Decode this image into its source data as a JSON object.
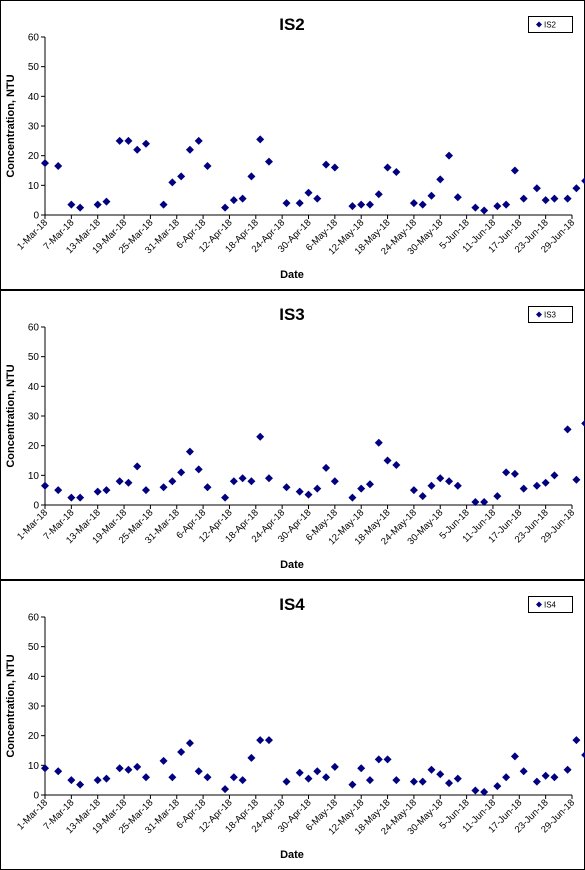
{
  "x_ticks": [
    "1-Mar-18",
    "7-Mar-18",
    "13-Mar-18",
    "19-Mar-18",
    "25-Mar-18",
    "31-Mar-18",
    "6-Apr-18",
    "12-Apr-18",
    "18-Apr-18",
    "24-Apr-18",
    "30-Apr-18",
    "6-May-18",
    "12-May-18",
    "18-May-18",
    "24-May-18",
    "30-May-18",
    "5-Jun-18",
    "11-Jun-18",
    "17-Jun-18",
    "23-Jun-18",
    "29-Jun-18"
  ],
  "chart_data": [
    {
      "type": "scatter",
      "title": "IS2",
      "xlabel": "Date",
      "ylabel": "Concentration, NTU",
      "ylim": [
        0,
        60
      ],
      "yticks": [
        0,
        10,
        20,
        30,
        40,
        50,
        60
      ],
      "xlim": [
        "2018-03-01",
        "2018-06-29"
      ],
      "legend_position": "top-right",
      "series": [
        {
          "name": "IS2",
          "color": "#000080",
          "points": [
            [
              "2018-03-01",
              17.5
            ],
            [
              "2018-03-04",
              16.5
            ],
            [
              "2018-03-07",
              3.5
            ],
            [
              "2018-03-09",
              2.5
            ],
            [
              "2018-03-13",
              3.5
            ],
            [
              "2018-03-15",
              4.5
            ],
            [
              "2018-03-18",
              25
            ],
            [
              "2018-03-20",
              25
            ],
            [
              "2018-03-22",
              22
            ],
            [
              "2018-03-24",
              24
            ],
            [
              "2018-03-28",
              3.5
            ],
            [
              "2018-03-30",
              11
            ],
            [
              "2018-04-01",
              13
            ],
            [
              "2018-04-03",
              22
            ],
            [
              "2018-04-05",
              25
            ],
            [
              "2018-04-07",
              16.5
            ],
            [
              "2018-04-11",
              2.5
            ],
            [
              "2018-04-13",
              5
            ],
            [
              "2018-04-15",
              5.5
            ],
            [
              "2018-04-17",
              13
            ],
            [
              "2018-04-19",
              25.5
            ],
            [
              "2018-04-21",
              18
            ],
            [
              "2018-04-25",
              4
            ],
            [
              "2018-04-28",
              4
            ],
            [
              "2018-04-30",
              7.5
            ],
            [
              "2018-05-02",
              5.5
            ],
            [
              "2018-05-04",
              17
            ],
            [
              "2018-05-06",
              16
            ],
            [
              "2018-05-10",
              3
            ],
            [
              "2018-05-12",
              3.5
            ],
            [
              "2018-05-14",
              3.5
            ],
            [
              "2018-05-16",
              7
            ],
            [
              "2018-05-18",
              16
            ],
            [
              "2018-05-20",
              14.5
            ],
            [
              "2018-05-24",
              4
            ],
            [
              "2018-05-26",
              3.5
            ],
            [
              "2018-05-28",
              6.5
            ],
            [
              "2018-05-30",
              12
            ],
            [
              "2018-06-01",
              20
            ],
            [
              "2018-06-03",
              6
            ],
            [
              "2018-06-07",
              2.5
            ],
            [
              "2018-06-09",
              1.5
            ],
            [
              "2018-06-12",
              3
            ],
            [
              "2018-06-14",
              3.5
            ],
            [
              "2018-06-16",
              15
            ],
            [
              "2018-06-18",
              5.5
            ],
            [
              "2018-06-21",
              9
            ],
            [
              "2018-06-23",
              5
            ],
            [
              "2018-06-25",
              5.5
            ],
            [
              "2018-06-28",
              5.5
            ],
            [
              "2018-06-30",
              9
            ],
            [
              "2018-07-02",
              11.5
            ]
          ]
        }
      ]
    },
    {
      "type": "scatter",
      "title": "IS3",
      "xlabel": "Date",
      "ylabel": "Concentration, NTU",
      "ylim": [
        0,
        60
      ],
      "yticks": [
        0,
        10,
        20,
        30,
        40,
        50,
        60
      ],
      "xlim": [
        "2018-03-01",
        "2018-06-29"
      ],
      "legend_position": "top-right",
      "series": [
        {
          "name": "IS3",
          "color": "#000080",
          "points": [
            [
              "2018-03-01",
              6.5
            ],
            [
              "2018-03-04",
              5
            ],
            [
              "2018-03-07",
              2.5
            ],
            [
              "2018-03-09",
              2.5
            ],
            [
              "2018-03-13",
              4.5
            ],
            [
              "2018-03-15",
              5
            ],
            [
              "2018-03-18",
              8
            ],
            [
              "2018-03-20",
              7.5
            ],
            [
              "2018-03-22",
              13
            ],
            [
              "2018-03-24",
              5
            ],
            [
              "2018-03-28",
              6
            ],
            [
              "2018-03-30",
              8
            ],
            [
              "2018-04-01",
              11
            ],
            [
              "2018-04-03",
              18
            ],
            [
              "2018-04-05",
              12
            ],
            [
              "2018-04-07",
              6
            ],
            [
              "2018-04-11",
              2.5
            ],
            [
              "2018-04-13",
              8
            ],
            [
              "2018-04-15",
              9
            ],
            [
              "2018-04-17",
              8
            ],
            [
              "2018-04-19",
              23
            ],
            [
              "2018-04-21",
              9
            ],
            [
              "2018-04-25",
              6
            ],
            [
              "2018-04-28",
              4.5
            ],
            [
              "2018-04-30",
              3.5
            ],
            [
              "2018-05-02",
              5.5
            ],
            [
              "2018-05-04",
              12.5
            ],
            [
              "2018-05-06",
              8
            ],
            [
              "2018-05-10",
              2.5
            ],
            [
              "2018-05-12",
              5.5
            ],
            [
              "2018-05-14",
              7
            ],
            [
              "2018-05-16",
              21
            ],
            [
              "2018-05-18",
              15
            ],
            [
              "2018-05-20",
              13.5
            ],
            [
              "2018-05-24",
              5
            ],
            [
              "2018-05-26",
              3
            ],
            [
              "2018-05-28",
              6.5
            ],
            [
              "2018-05-30",
              9
            ],
            [
              "2018-06-01",
              8
            ],
            [
              "2018-06-03",
              6.5
            ],
            [
              "2018-06-07",
              1
            ],
            [
              "2018-06-09",
              1
            ],
            [
              "2018-06-12",
              3
            ],
            [
              "2018-06-14",
              11
            ],
            [
              "2018-06-16",
              10.5
            ],
            [
              "2018-06-18",
              5.5
            ],
            [
              "2018-06-21",
              6.5
            ],
            [
              "2018-06-23",
              7.5
            ],
            [
              "2018-06-25",
              10
            ],
            [
              "2018-06-28",
              25.5
            ],
            [
              "2018-06-30",
              8.5
            ],
            [
              "2018-07-02",
              27.5
            ]
          ]
        }
      ]
    },
    {
      "type": "scatter",
      "title": "IS4",
      "xlabel": "Date",
      "ylabel": "Concentration, NTU",
      "ylim": [
        0,
        60
      ],
      "yticks": [
        0,
        10,
        20,
        30,
        40,
        50,
        60
      ],
      "xlim": [
        "2018-03-01",
        "2018-06-29"
      ],
      "legend_position": "top-right",
      "series": [
        {
          "name": "IS4",
          "color": "#000080",
          "points": [
            [
              "2018-03-01",
              9
            ],
            [
              "2018-03-04",
              8
            ],
            [
              "2018-03-07",
              5
            ],
            [
              "2018-03-09",
              3.5
            ],
            [
              "2018-03-13",
              5
            ],
            [
              "2018-03-15",
              5.5
            ],
            [
              "2018-03-18",
              9
            ],
            [
              "2018-03-20",
              8.5
            ],
            [
              "2018-03-22",
              9.5
            ],
            [
              "2018-03-24",
              6
            ],
            [
              "2018-03-28",
              11.5
            ],
            [
              "2018-03-30",
              6
            ],
            [
              "2018-04-01",
              14.5
            ],
            [
              "2018-04-03",
              17.5
            ],
            [
              "2018-04-05",
              8
            ],
            [
              "2018-04-07",
              6
            ],
            [
              "2018-04-11",
              2
            ],
            [
              "2018-04-13",
              6
            ],
            [
              "2018-04-15",
              5
            ],
            [
              "2018-04-17",
              12.5
            ],
            [
              "2018-04-19",
              18.5
            ],
            [
              "2018-04-21",
              18.5
            ],
            [
              "2018-04-25",
              4.5
            ],
            [
              "2018-04-28",
              7.5
            ],
            [
              "2018-04-30",
              5.5
            ],
            [
              "2018-05-02",
              8
            ],
            [
              "2018-05-04",
              6
            ],
            [
              "2018-05-06",
              9.5
            ],
            [
              "2018-05-10",
              3.5
            ],
            [
              "2018-05-12",
              9
            ],
            [
              "2018-05-14",
              5
            ],
            [
              "2018-05-16",
              12
            ],
            [
              "2018-05-18",
              12
            ],
            [
              "2018-05-20",
              5
            ],
            [
              "2018-05-24",
              4.5
            ],
            [
              "2018-05-26",
              4.5
            ],
            [
              "2018-05-28",
              8.5
            ],
            [
              "2018-05-30",
              7
            ],
            [
              "2018-06-01",
              4
            ],
            [
              "2018-06-03",
              5.5
            ],
            [
              "2018-06-07",
              1.5
            ],
            [
              "2018-06-09",
              1
            ],
            [
              "2018-06-12",
              3
            ],
            [
              "2018-06-14",
              6
            ],
            [
              "2018-06-16",
              13
            ],
            [
              "2018-06-18",
              8
            ],
            [
              "2018-06-21",
              4.5
            ],
            [
              "2018-06-23",
              6.5
            ],
            [
              "2018-06-25",
              6
            ],
            [
              "2018-06-28",
              8.5
            ],
            [
              "2018-06-30",
              18.5
            ],
            [
              "2018-07-02",
              13.5
            ]
          ]
        }
      ]
    }
  ]
}
